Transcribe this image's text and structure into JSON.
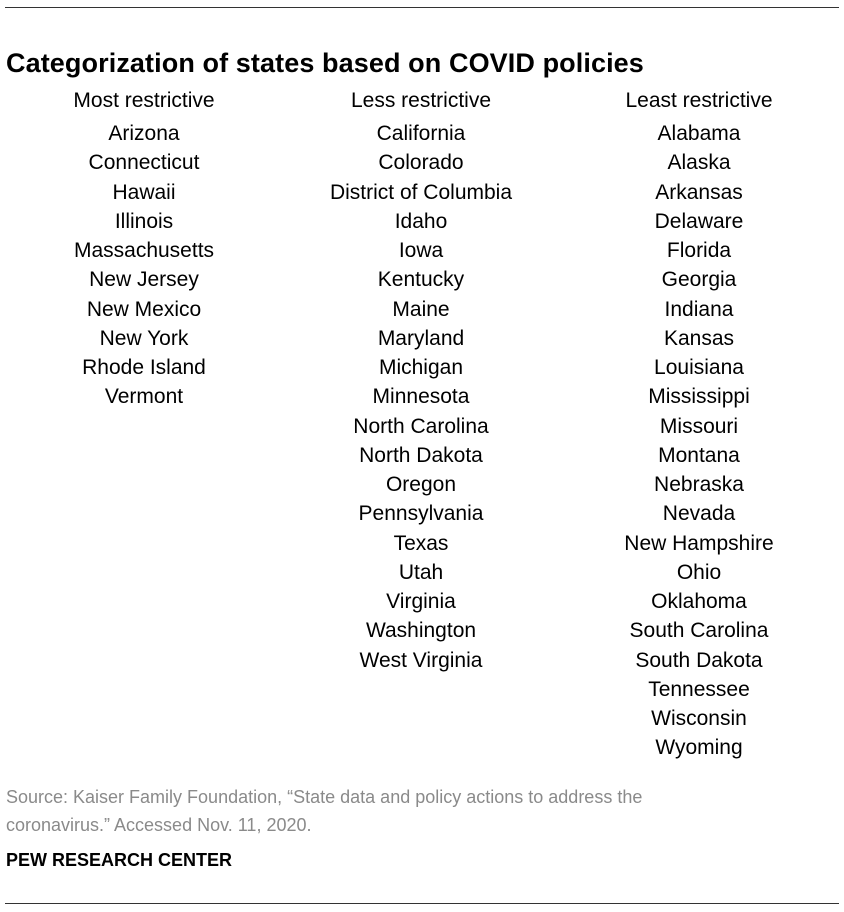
{
  "title": "Categorization of states based on COVID policies",
  "columns": [
    {
      "heading": "Most restrictive",
      "states": [
        "Arizona",
        "Connecticut",
        "Hawaii",
        "Illinois",
        "Massachusetts",
        "New Jersey",
        "New Mexico",
        "New York",
        "Rhode Island",
        "Vermont"
      ]
    },
    {
      "heading": "Less restrictive",
      "states": [
        "California",
        "Colorado",
        "District of Columbia",
        "Idaho",
        "Iowa",
        "Kentucky",
        "Maine",
        "Maryland",
        "Michigan",
        "Minnesota",
        "North Carolina",
        "North Dakota",
        "Oregon",
        "Pennsylvania",
        "Texas",
        "Utah",
        "Virginia",
        "Washington",
        "West Virginia"
      ]
    },
    {
      "heading": "Least restrictive",
      "states": [
        "Alabama",
        "Alaska",
        "Arkansas",
        "Delaware",
        "Florida",
        "Georgia",
        "Indiana",
        "Kansas",
        "Louisiana",
        "Mississippi",
        "Missouri",
        "Montana",
        "Nebraska",
        "Nevada",
        "New Hampshire",
        "Ohio",
        "Oklahoma",
        "South Carolina",
        "South Dakota",
        "Tennessee",
        "Wisconsin",
        "Wyoming"
      ]
    }
  ],
  "source": {
    "line1": "Source: Kaiser Family Foundation, “State data and policy actions to address the",
    "line2": "coronavirus.” Accessed Nov. 11, 2020."
  },
  "brand": "PEW RESEARCH CENTER",
  "colors": {
    "text": "#000000",
    "source_text": "#8a8a8a",
    "rule": "#333333"
  }
}
